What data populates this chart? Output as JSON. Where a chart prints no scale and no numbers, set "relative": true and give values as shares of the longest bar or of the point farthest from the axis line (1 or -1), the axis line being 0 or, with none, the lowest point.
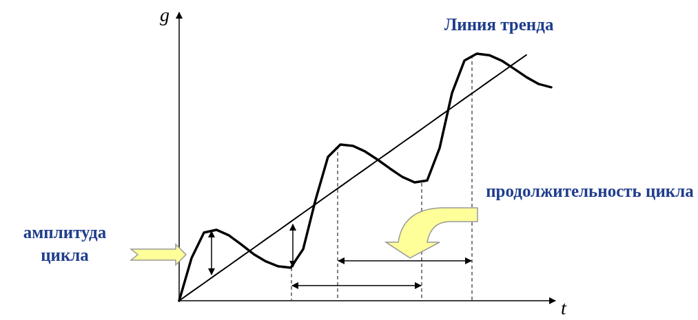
{
  "chart_data": {
    "type": "line",
    "relative": true,
    "xlabel": "t",
    "ylabel": "g",
    "categories": [
      null,
      null,
      null,
      null,
      null,
      null,
      null,
      null,
      null,
      null,
      null,
      null,
      null,
      null,
      null,
      null,
      null,
      null,
      null,
      null,
      null,
      null,
      null,
      null,
      null,
      null,
      null,
      null,
      null,
      null,
      null
    ],
    "series": [
      {
        "color": "#000000",
        "values": [
          0,
          0.173,
          0.276,
          0.287,
          0.265,
          0.228,
          0.189,
          0.159,
          0.139,
          0.134,
          0.209,
          0.409,
          0.582,
          0.632,
          0.627,
          0.604,
          0.571,
          0.535,
          0.501,
          0.479,
          0.487,
          0.618,
          0.841,
          0.972,
          1,
          0.994,
          0.972,
          0.939,
          0.905,
          0.877,
          0.864
        ]
      },
      {
        "name": "Линия тренда",
        "color": "#000000",
        "values": [
          0,
          0.036,
          0.071,
          0.107,
          0.142,
          0.178,
          0.213,
          0.249,
          0.284,
          0.32,
          0.356,
          0.391,
          0.427,
          0.462,
          0.498,
          0.533,
          0.569,
          0.604,
          0.64,
          0.675,
          0.711,
          0.747,
          0.782,
          0.818,
          0.853,
          0.889,
          0.924,
          0.96,
          0.995,
          null,
          null
        ]
      }
    ],
    "annotations": [
      "амплитуда цикла",
      "продолжительность цикла"
    ]
  }
}
